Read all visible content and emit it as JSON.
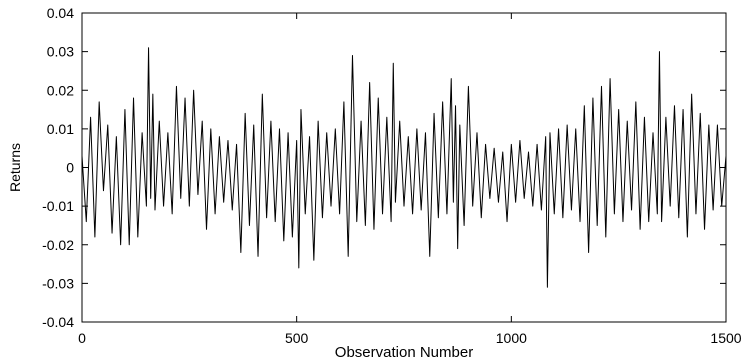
{
  "chart_data": {
    "type": "line",
    "title": "",
    "xlabel": "Observation Number",
    "ylabel": "Returns",
    "xlim": [
      0,
      1500
    ],
    "ylim": [
      -0.04,
      0.04
    ],
    "grid": false,
    "legend": "none",
    "x_ticks": [
      0,
      500,
      1000,
      1500
    ],
    "x_tick_labels": [
      "0",
      "500",
      "1000",
      "1500"
    ],
    "y_ticks": [
      0.04,
      0.03,
      0.02,
      0.01,
      0,
      -0.01,
      -0.02,
      -0.03,
      -0.04
    ],
    "y_tick_labels": [
      "0.04",
      "0.03",
      "0.02",
      "0.01",
      "0",
      "-0.01",
      "-0.02",
      "-0.03",
      "-0.04"
    ],
    "series_color": "#000000",
    "series": [
      {
        "points": [
          [
            0,
            0.003
          ],
          [
            10,
            -0.014
          ],
          [
            20,
            0.013
          ],
          [
            30,
            -0.018
          ],
          [
            40,
            0.017
          ],
          [
            50,
            -0.006
          ],
          [
            60,
            0.011
          ],
          [
            70,
            -0.017
          ],
          [
            80,
            0.008
          ],
          [
            90,
            -0.02
          ],
          [
            100,
            0.015
          ],
          [
            110,
            -0.02
          ],
          [
            120,
            0.018
          ],
          [
            130,
            -0.018
          ],
          [
            140,
            0.009
          ],
          [
            150,
            -0.01
          ],
          [
            155,
            0.031
          ],
          [
            160,
            -0.008
          ],
          [
            165,
            0.019
          ],
          [
            170,
            -0.011
          ],
          [
            180,
            0.012
          ],
          [
            190,
            -0.01
          ],
          [
            200,
            0.009
          ],
          [
            210,
            -0.012
          ],
          [
            220,
            0.021
          ],
          [
            230,
            -0.008
          ],
          [
            240,
            0.018
          ],
          [
            250,
            -0.01
          ],
          [
            260,
            0.02
          ],
          [
            270,
            -0.007
          ],
          [
            280,
            0.012
          ],
          [
            290,
            -0.016
          ],
          [
            300,
            0.01
          ],
          [
            310,
            -0.012
          ],
          [
            320,
            0.008
          ],
          [
            330,
            -0.009
          ],
          [
            340,
            0.007
          ],
          [
            350,
            -0.011
          ],
          [
            360,
            0.006
          ],
          [
            370,
            -0.022
          ],
          [
            380,
            0.014
          ],
          [
            390,
            -0.015
          ],
          [
            400,
            0.011
          ],
          [
            410,
            -0.023
          ],
          [
            420,
            0.019
          ],
          [
            430,
            -0.013
          ],
          [
            440,
            0.012
          ],
          [
            450,
            -0.014
          ],
          [
            460,
            0.01
          ],
          [
            470,
            -0.019
          ],
          [
            480,
            0.009
          ],
          [
            490,
            -0.018
          ],
          [
            500,
            0.007
          ],
          [
            505,
            -0.026
          ],
          [
            510,
            0.015
          ],
          [
            520,
            -0.012
          ],
          [
            530,
            0.008
          ],
          [
            540,
            -0.024
          ],
          [
            550,
            0.012
          ],
          [
            560,
            -0.013
          ],
          [
            570,
            0.009
          ],
          [
            580,
            -0.01
          ],
          [
            590,
            0.01
          ],
          [
            600,
            -0.012
          ],
          [
            610,
            0.017
          ],
          [
            620,
            -0.023
          ],
          [
            630,
            0.029
          ],
          [
            640,
            -0.014
          ],
          [
            650,
            0.012
          ],
          [
            660,
            -0.015
          ],
          [
            670,
            0.022
          ],
          [
            680,
            -0.016
          ],
          [
            690,
            0.018
          ],
          [
            700,
            -0.012
          ],
          [
            710,
            0.013
          ],
          [
            720,
            -0.014
          ],
          [
            725,
            0.027
          ],
          [
            730,
            -0.009
          ],
          [
            740,
            0.012
          ],
          [
            750,
            -0.01
          ],
          [
            760,
            0.008
          ],
          [
            770,
            -0.012
          ],
          [
            780,
            0.01
          ],
          [
            790,
            -0.011
          ],
          [
            800,
            0.009
          ],
          [
            810,
            -0.023
          ],
          [
            820,
            0.014
          ],
          [
            830,
            -0.013
          ],
          [
            840,
            0.017
          ],
          [
            850,
            -0.012
          ],
          [
            860,
            0.023
          ],
          [
            865,
            -0.009
          ],
          [
            870,
            0.016
          ],
          [
            875,
            -0.021
          ],
          [
            880,
            0.011
          ],
          [
            890,
            -0.015
          ],
          [
            900,
            0.021
          ],
          [
            910,
            -0.01
          ],
          [
            920,
            0.009
          ],
          [
            930,
            -0.013
          ],
          [
            940,
            0.006
          ],
          [
            950,
            -0.008
          ],
          [
            960,
            0.005
          ],
          [
            970,
            -0.009
          ],
          [
            980,
            0.004
          ],
          [
            990,
            -0.014
          ],
          [
            1000,
            0.006
          ],
          [
            1010,
            -0.009
          ],
          [
            1020,
            0.007
          ],
          [
            1030,
            -0.008
          ],
          [
            1040,
            0.004
          ],
          [
            1050,
            -0.01
          ],
          [
            1060,
            0.006
          ],
          [
            1070,
            -0.011
          ],
          [
            1080,
            0.008
          ],
          [
            1084,
            -0.031
          ],
          [
            1090,
            0.009
          ],
          [
            1100,
            -0.012
          ],
          [
            1110,
            0.01
          ],
          [
            1120,
            -0.013
          ],
          [
            1130,
            0.011
          ],
          [
            1140,
            -0.011
          ],
          [
            1150,
            0.01
          ],
          [
            1160,
            -0.014
          ],
          [
            1170,
            0.016
          ],
          [
            1180,
            -0.022
          ],
          [
            1190,
            0.018
          ],
          [
            1200,
            -0.015
          ],
          [
            1210,
            0.021
          ],
          [
            1220,
            -0.018
          ],
          [
            1230,
            0.023
          ],
          [
            1240,
            -0.012
          ],
          [
            1250,
            0.015
          ],
          [
            1260,
            -0.014
          ],
          [
            1270,
            0.012
          ],
          [
            1280,
            -0.011
          ],
          [
            1290,
            0.017
          ],
          [
            1300,
            -0.016
          ],
          [
            1310,
            0.013
          ],
          [
            1320,
            -0.014
          ],
          [
            1330,
            0.009
          ],
          [
            1340,
            -0.012
          ],
          [
            1345,
            0.03
          ],
          [
            1350,
            -0.014
          ],
          [
            1360,
            0.013
          ],
          [
            1370,
            -0.01
          ],
          [
            1380,
            0.016
          ],
          [
            1390,
            -0.013
          ],
          [
            1400,
            0.015
          ],
          [
            1410,
            -0.018
          ],
          [
            1420,
            0.019
          ],
          [
            1430,
            -0.012
          ],
          [
            1440,
            0.014
          ],
          [
            1450,
            -0.016
          ],
          [
            1460,
            0.011
          ],
          [
            1470,
            -0.011
          ],
          [
            1480,
            0.011
          ],
          [
            1490,
            -0.01
          ],
          [
            1500,
            0.003
          ]
        ]
      }
    ]
  }
}
